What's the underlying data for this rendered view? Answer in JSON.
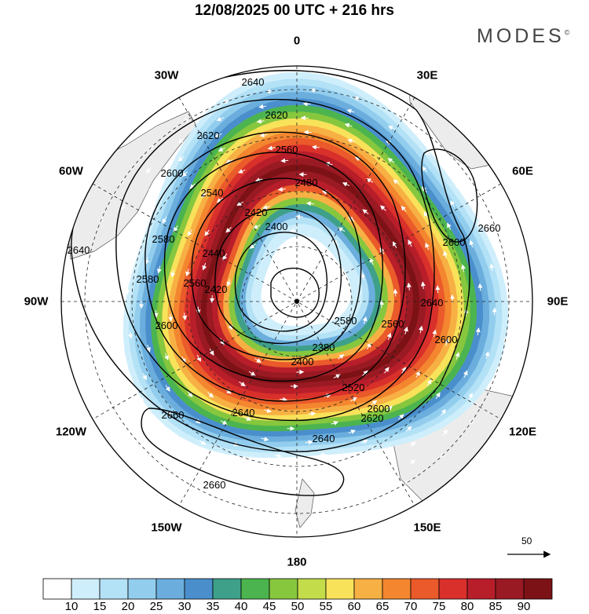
{
  "header": {
    "title": "12/08/2025  00 UTC  + 216 hrs",
    "brand": "MODES",
    "brand_mark": "©"
  },
  "map": {
    "projection": "south-polar-stereographic",
    "longitude_labels": [
      "0",
      "30E",
      "60E",
      "90E",
      "120E",
      "150E",
      "180",
      "150W",
      "120W",
      "90W",
      "60W",
      "30W"
    ],
    "contour_labels": [
      "2640",
      "2620",
      "2620",
      "2600",
      "2580",
      "2560",
      "2540",
      "2480",
      "2440",
      "2420",
      "2400",
      "2580",
      "2660",
      "2640",
      "2600",
      "2560",
      "2600",
      "2640",
      "2660",
      "2660",
      "2640",
      "2620",
      "2600",
      "2520",
      "2400",
      "2380",
      "2420",
      "2600",
      "2560",
      "2580",
      "2640"
    ],
    "vector_scale_label": "50"
  },
  "colorbar": {
    "tick_labels": [
      "10",
      "15",
      "20",
      "25",
      "30",
      "35",
      "40",
      "45",
      "50",
      "55",
      "60",
      "65",
      "70",
      "75",
      "80",
      "85",
      "90"
    ],
    "colors": [
      "#ffffff",
      "#cfeefb",
      "#b3e1f6",
      "#92cdee",
      "#6baedd",
      "#4a8fcc",
      "#3fa08a",
      "#4cb44e",
      "#86c73e",
      "#c3dc4a",
      "#f8e25a",
      "#f7b044",
      "#f3862f",
      "#ea5a2a",
      "#d9302b",
      "#b81e2a",
      "#9a1a23",
      "#7c1216"
    ]
  }
}
